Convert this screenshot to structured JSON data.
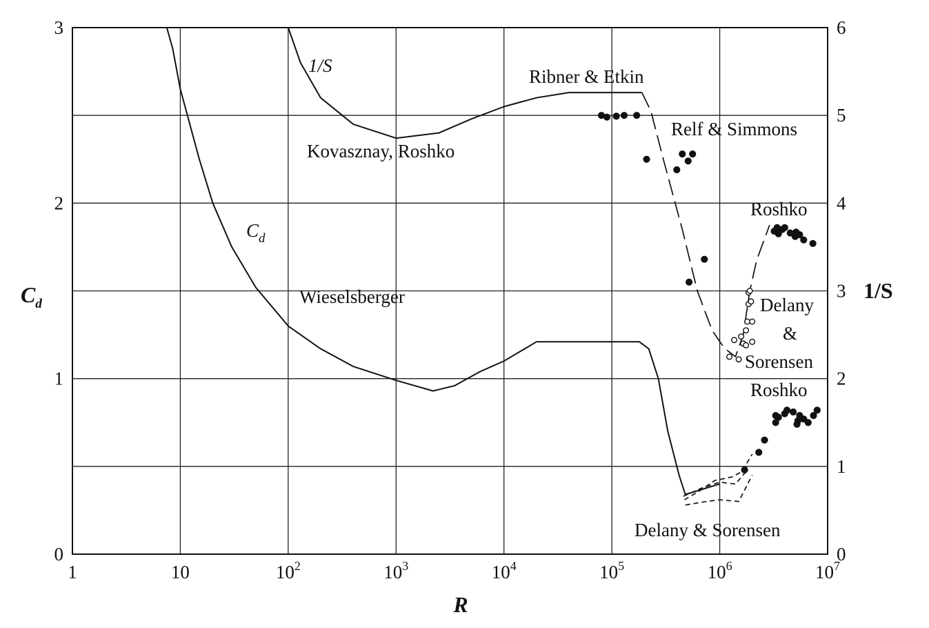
{
  "chart_data": {
    "type": "line",
    "xlabel": "R",
    "ylabel_left": {
      "main": "C",
      "sub": "d"
    },
    "ylabel_right": "1/S",
    "x_scale": "log",
    "xlim": [
      1,
      10000000
    ],
    "ylim_left": [
      0,
      3
    ],
    "ylim_right": [
      0,
      6
    ],
    "grid": true,
    "x_ticks": [
      {
        "value": 1,
        "label": "1"
      },
      {
        "value": 10,
        "label": "10"
      },
      {
        "value": 100,
        "base": "10",
        "exp": "2"
      },
      {
        "value": 1000,
        "base": "10",
        "exp": "3"
      },
      {
        "value": 10000,
        "base": "10",
        "exp": "4"
      },
      {
        "value": 100000,
        "base": "10",
        "exp": "5"
      },
      {
        "value": 1000000,
        "base": "10",
        "exp": "6"
      },
      {
        "value": 10000000,
        "base": "10",
        "exp": "7"
      }
    ],
    "y_ticks_left": [
      "0",
      "1",
      "2",
      "3"
    ],
    "y_ticks_right": [
      "0",
      "1",
      "2",
      "3",
      "4",
      "5",
      "6"
    ],
    "series": [
      {
        "axis": "left",
        "style": "solid",
        "points": [
          [
            7.5,
            3.0
          ],
          [
            8.5,
            2.88
          ],
          [
            10,
            2.65
          ],
          [
            15,
            2.25
          ],
          [
            20,
            2.0
          ],
          [
            30,
            1.75
          ],
          [
            50,
            1.52
          ],
          [
            100,
            1.3
          ],
          [
            200,
            1.17
          ],
          [
            400,
            1.07
          ],
          [
            1000,
            0.99
          ],
          [
            2200,
            0.93
          ],
          [
            3500,
            0.96
          ],
          [
            6000,
            1.04
          ],
          [
            10000,
            1.1
          ],
          [
            20000,
            1.21
          ],
          [
            100000,
            1.21
          ],
          [
            180000,
            1.21
          ],
          [
            220000,
            1.17
          ],
          [
            270000,
            1.0
          ],
          [
            330000,
            0.7
          ],
          [
            420000,
            0.45
          ],
          [
            480000,
            0.34
          ],
          [
            1000000,
            0.4
          ]
        ]
      },
      {
        "axis": "left",
        "style": "dashed",
        "points": [
          [
            470000,
            0.31
          ],
          [
            650000,
            0.36
          ],
          [
            900000,
            0.42
          ],
          [
            1300000,
            0.44
          ],
          [
            1600000,
            0.47
          ],
          [
            2000000,
            0.57
          ]
        ]
      },
      {
        "axis": "left",
        "style": "dashed",
        "points": [
          [
            480000,
            0.28
          ],
          [
            750000,
            0.3
          ],
          [
            1000000,
            0.31
          ],
          [
            1500000,
            0.3
          ],
          [
            2000000,
            0.45
          ]
        ]
      },
      {
        "axis": "left",
        "style": "dashed",
        "points": [
          [
            460000,
            0.33
          ],
          [
            700000,
            0.38
          ],
          [
            1000000,
            0.41
          ],
          [
            1400000,
            0.4
          ],
          [
            1750000,
            0.47
          ]
        ]
      },
      {
        "axis": "right",
        "style": "solid",
        "points": [
          [
            100,
            6.0
          ],
          [
            130,
            5.6
          ],
          [
            200,
            5.2
          ],
          [
            400,
            4.9
          ],
          [
            1000,
            4.74
          ],
          [
            2500,
            4.8
          ],
          [
            5000,
            4.96
          ],
          [
            10000,
            5.1
          ],
          [
            20000,
            5.2
          ],
          [
            40000,
            5.26
          ],
          [
            100000,
            5.26
          ],
          [
            190000,
            5.26
          ]
        ]
      },
      {
        "axis": "right",
        "style": "longdash",
        "points": [
          [
            190000,
            5.26
          ],
          [
            230000,
            5.05
          ],
          [
            300000,
            4.5
          ],
          [
            450000,
            3.7
          ],
          [
            620000,
            3.0
          ],
          [
            850000,
            2.55
          ],
          [
            1100000,
            2.35
          ],
          [
            1400000,
            2.25
          ],
          [
            1650000,
            2.5
          ],
          [
            1900000,
            3.0
          ],
          [
            2200000,
            3.35
          ],
          [
            2900000,
            3.75
          ]
        ]
      }
    ],
    "scatter_left": [
      {
        "marker": "filled",
        "points": [
          [
            1700000,
            0.48
          ],
          [
            2300000,
            0.58
          ],
          [
            2600000,
            0.65
          ],
          [
            3300000,
            0.75
          ],
          [
            3500000,
            0.78
          ],
          [
            3300000,
            0.79
          ],
          [
            4000000,
            0.8
          ],
          [
            4200000,
            0.82
          ],
          [
            4800000,
            0.81
          ],
          [
            5200000,
            0.74
          ],
          [
            5300000,
            0.76
          ],
          [
            5500000,
            0.79
          ],
          [
            6000000,
            0.77
          ],
          [
            6600000,
            0.75
          ],
          [
            7400000,
            0.79
          ],
          [
            8000000,
            0.82
          ]
        ]
      }
    ],
    "scatter_right": [
      {
        "marker": "filled",
        "points": [
          [
            80000,
            5.0
          ],
          [
            90000,
            4.98
          ],
          [
            110000,
            4.99
          ],
          [
            130000,
            5.0
          ],
          [
            170000,
            5.0
          ],
          [
            210000,
            4.5
          ],
          [
            400000,
            4.38
          ],
          [
            450000,
            4.56
          ],
          [
            510000,
            4.48
          ],
          [
            560000,
            4.56
          ],
          [
            520000,
            3.1
          ],
          [
            720000,
            3.36
          ]
        ]
      },
      {
        "marker": "open",
        "points": [
          [
            1230000,
            2.25
          ],
          [
            1360000,
            2.44
          ],
          [
            1500000,
            2.22
          ],
          [
            1580000,
            2.48
          ],
          [
            1650000,
            2.4
          ],
          [
            1750000,
            2.55
          ],
          [
            1750000,
            2.38
          ],
          [
            1800000,
            2.65
          ],
          [
            1850000,
            2.85
          ],
          [
            1850000,
            2.98
          ],
          [
            1900000,
            3.0
          ],
          [
            1950000,
            2.88
          ],
          [
            2000000,
            2.65
          ],
          [
            2000000,
            2.42
          ]
        ]
      },
      {
        "marker": "filled",
        "points": [
          [
            3200000,
            3.68
          ],
          [
            3400000,
            3.72
          ],
          [
            3500000,
            3.65
          ],
          [
            3800000,
            3.7
          ],
          [
            4000000,
            3.72
          ],
          [
            4500000,
            3.66
          ],
          [
            5000000,
            3.62
          ],
          [
            5100000,
            3.67
          ],
          [
            5500000,
            3.64
          ],
          [
            6000000,
            3.58
          ],
          [
            7300000,
            3.54
          ]
        ]
      }
    ],
    "annotations": [
      {
        "text": "1/S"
      },
      {
        "text": "Ribner & Etkin"
      },
      {
        "text": "Relf & Simmons"
      },
      {
        "text": "Kovasznay, Roshko"
      },
      {
        "text": "Roshko"
      },
      {
        "text": "C",
        "sub": "d"
      },
      {
        "text": "Wieselsberger"
      },
      {
        "text": "Delany"
      },
      {
        "text": "&"
      },
      {
        "text": "Sorensen"
      },
      {
        "text": "Roshko"
      },
      {
        "text": "Delany & Sorensen"
      }
    ]
  }
}
